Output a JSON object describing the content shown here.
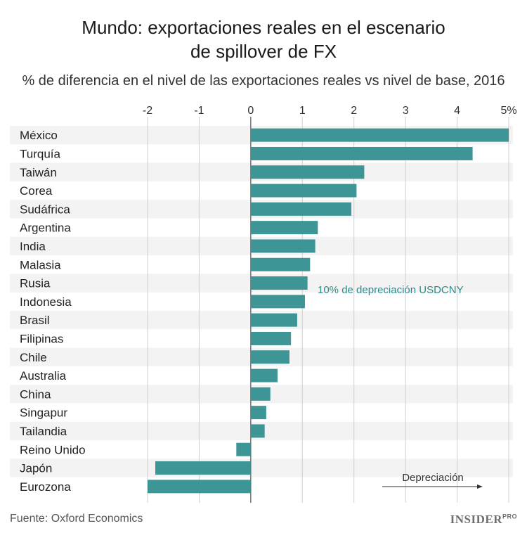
{
  "title_lines": [
    "Mundo: exportaciones reales en el escenario",
    "de spillover de FX"
  ],
  "subtitle": "% de diferencia en el nivel de las exportaciones reales vs nivel de base, 2016",
  "source": "Fuente: Oxford Economics",
  "brand": {
    "name": "INSIDER",
    "suffix": "PRO"
  },
  "colors": {
    "bar": "#3d9695",
    "annotation": "#2f8a89",
    "row_band": "#f3f3f3",
    "grid": "#cfcfcf",
    "zero": "#555555"
  },
  "chart_data": {
    "type": "bar",
    "orientation": "horizontal",
    "categories": [
      "México",
      "Turquía",
      "Taiwán",
      "Corea",
      "Sudáfrica",
      "Argentina",
      "India",
      "Malasia",
      "Rusia",
      "Indonesia",
      "Brasil",
      "Filipinas",
      "Chile",
      "Australia",
      "China",
      "Singapur",
      "Tailandia",
      "Reino Unido",
      "Japón",
      "Eurozona"
    ],
    "values": [
      5.0,
      4.3,
      2.2,
      2.05,
      1.95,
      1.3,
      1.25,
      1.15,
      1.1,
      1.05,
      0.9,
      0.78,
      0.75,
      0.52,
      0.38,
      0.3,
      0.27,
      -0.28,
      -1.85,
      -2.0
    ],
    "xlim": [
      -2,
      5
    ],
    "xticks": [
      -2,
      -1,
      0,
      1,
      2,
      3,
      4,
      5
    ],
    "xtick_labels": [
      "-2",
      "-1",
      "0",
      "1",
      "2",
      "3",
      "4",
      "5%"
    ],
    "grid": true,
    "annotations": [
      "10% de depreciación USDCNY",
      "Depreciación"
    ]
  }
}
